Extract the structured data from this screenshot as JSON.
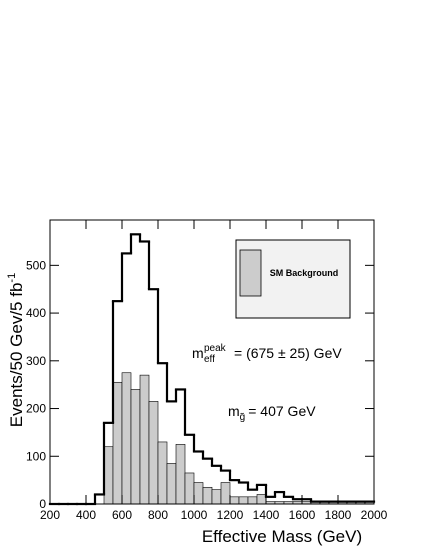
{
  "chart_data": {
    "type": "histogram",
    "x_label": "Effective Mass (GeV)",
    "y_label": {
      "text": "Events/50 Gev/5 fb",
      "sup": "-1"
    },
    "bins": [
      200,
      250,
      300,
      350,
      400,
      450,
      500,
      550,
      600,
      650,
      700,
      750,
      800,
      850,
      900,
      950,
      1000,
      1050,
      1100,
      1150,
      1200,
      1250,
      1300,
      1350,
      1400,
      1450,
      1500,
      1550,
      1600,
      1650,
      1700,
      1750,
      1800,
      1850,
      1900,
      1950,
      2000
    ],
    "series": [
      {
        "color": "#000000",
        "fill": false,
        "values": [
          0,
          0,
          0,
          0,
          0,
          20,
          170,
          425,
          525,
          565,
          550,
          450,
          295,
          215,
          240,
          145,
          110,
          95,
          80,
          70,
          50,
          45,
          30,
          40,
          15,
          25,
          15,
          10,
          10,
          5,
          5,
          5,
          5,
          5,
          5,
          5
        ]
      },
      {
        "name": "SM Background",
        "color": "#cccccc",
        "fill": true,
        "values": [
          0,
          0,
          0,
          0,
          0,
          0,
          120,
          255,
          275,
          240,
          270,
          215,
          130,
          85,
          125,
          65,
          45,
          35,
          30,
          45,
          15,
          15,
          15,
          20,
          5,
          5,
          5,
          5,
          5,
          5,
          5,
          5,
          5,
          5,
          5,
          5
        ]
      }
    ],
    "xlim": [
      200,
      2000
    ],
    "ylim": [
      0,
      595
    ],
    "xticks": [
      200,
      400,
      600,
      800,
      1000,
      1200,
      1400,
      1600,
      1800,
      2000
    ],
    "yticks": [
      0,
      100,
      200,
      300,
      400,
      500
    ],
    "annotations": [
      {
        "text": "m",
        "sub": "eff",
        "sup": "peak",
        "rest": "= (675 ± 25) GeV"
      },
      {
        "text": "m",
        "sub": "g̃",
        "rest": "= 407 GeV"
      }
    ]
  }
}
